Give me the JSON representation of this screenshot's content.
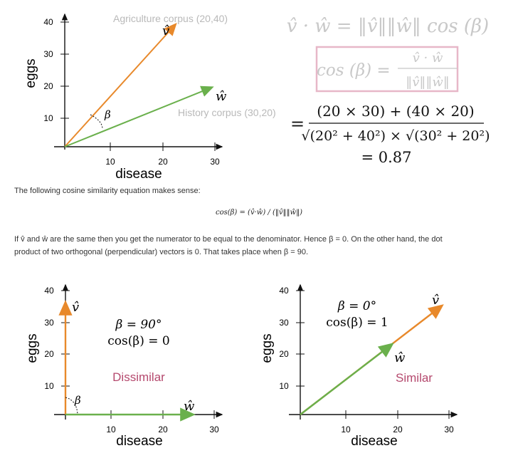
{
  "top_figure": {
    "y_axis_label": "eggs",
    "x_axis_label": "disease",
    "y_ticks": [
      "40",
      "30",
      "20",
      "10"
    ],
    "x_ticks": [
      "10",
      "20",
      "30"
    ],
    "agri_label": "Agriculture corpus (20,40)",
    "history_label": "History corpus (30,20)",
    "v_hat": "v̂",
    "w_hat": "ŵ",
    "beta": "β",
    "vectors": [
      {
        "name": "v",
        "x": 20,
        "y": 40,
        "color": "#e8892b"
      },
      {
        "name": "w",
        "x": 30,
        "y": 20,
        "color": "#6ab04c"
      }
    ],
    "eq1": "v̂ · ŵ = ‖v̂‖‖ŵ‖ cos (β)",
    "eq2_lhs": "cos (β) =",
    "eq2_num": "v̂ · ŵ",
    "eq2_den": "‖v̂‖‖ŵ‖",
    "eq3_eq": "=",
    "eq3_num": "(20 × 30) + (40 × 20)",
    "eq3_den": "√(20² + 40²) × √(30² + 20²)",
    "eq4": "= 0.87"
  },
  "text": {
    "line1": "The following cosine similarity equation makes sense:",
    "formula": "cos(β) = (v̂·ŵ) / (‖v̂‖‖ŵ‖)",
    "line2a": "If v̂ and ŵ are the same then you get the numerator to be equal to the denominator. Hence β = 0. On the other hand, the dot",
    "line2b": "product of two orthogonal (perpendicular) vectors is 0. That takes place when β = 90."
  },
  "left_figure": {
    "y_axis_label": "eggs",
    "x_axis_label": "disease",
    "y_ticks": [
      "40",
      "30",
      "20",
      "10"
    ],
    "x_ticks": [
      "10",
      "20",
      "30"
    ],
    "beta_eq": "β = 90°",
    "cos_eq": "cos(β) = 0",
    "tag": "Dissimilar",
    "v_hat": "v̂",
    "w_hat": "ŵ",
    "beta": "β"
  },
  "right_figure": {
    "y_axis_label": "eggs",
    "x_axis_label": "disease",
    "y_ticks": [
      "40",
      "30",
      "20",
      "10"
    ],
    "x_ticks": [
      "10",
      "20",
      "30"
    ],
    "beta_eq": "β = 0°",
    "cos_eq": "cos(β) = 1",
    "tag": "Similar",
    "v_hat": "v̂",
    "w_hat": "ŵ"
  },
  "colors": {
    "orange": "#e8892b",
    "green": "#6ab04c",
    "pink": "#b5496e",
    "gray": "#b9b9b9",
    "box": "#e7b7c8"
  }
}
